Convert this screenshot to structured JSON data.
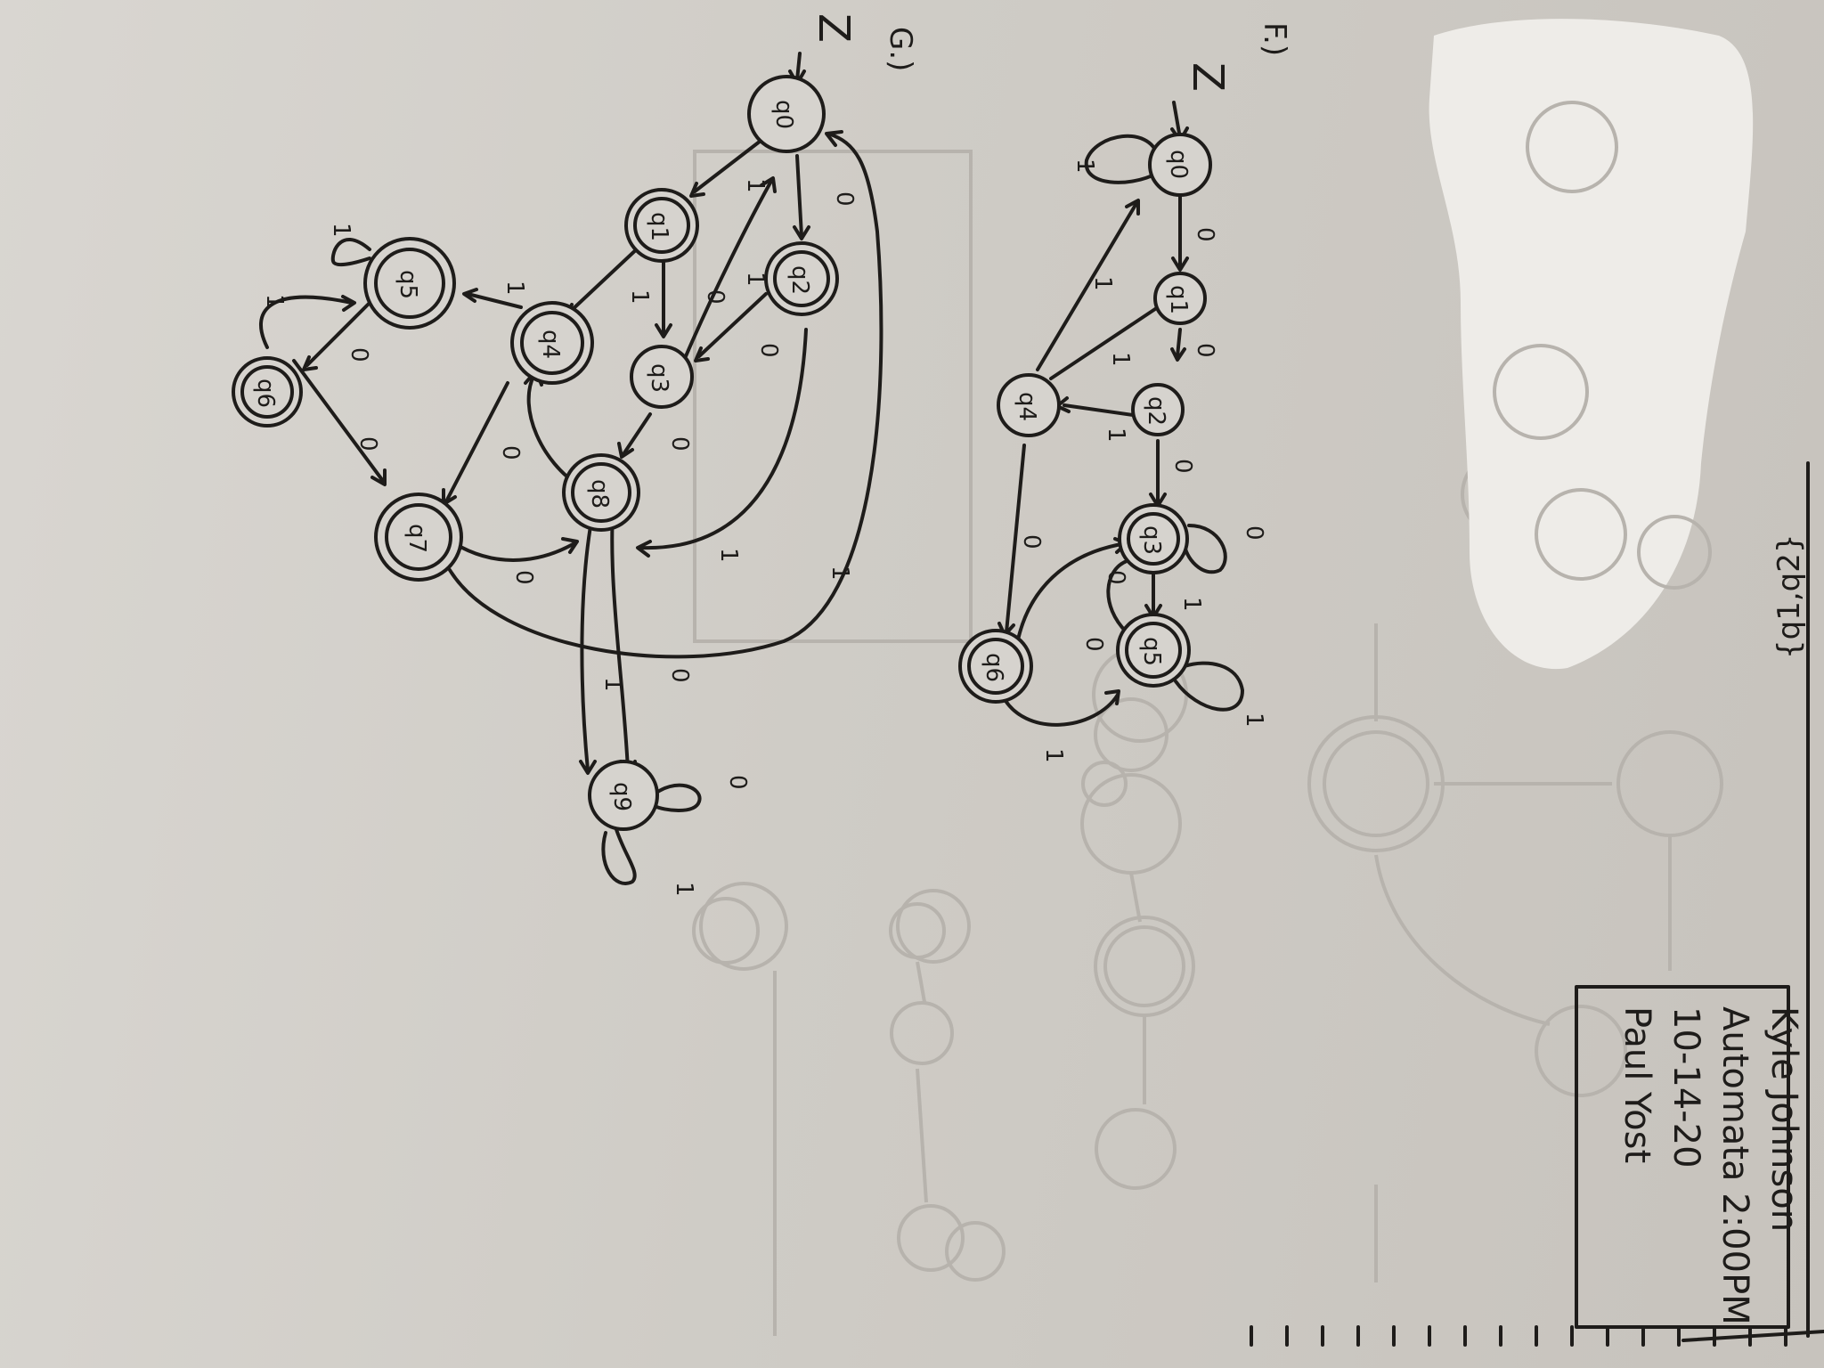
{
  "header": {
    "corner_text": "{q1,q2}"
  },
  "info_box": {
    "lines": [
      "Kyle Johnson",
      "Automata 2:00PM",
      "10-14-20",
      "Paul Yost"
    ]
  },
  "part_g": {
    "label": "G.)",
    "start_marker": "Z",
    "states": [
      {
        "id": "q0",
        "label": "q0",
        "accepting": false
      },
      {
        "id": "q1",
        "label": "q1",
        "accepting": true
      },
      {
        "id": "q2",
        "label": "q2",
        "accepting": true
      },
      {
        "id": "q3",
        "label": "q3",
        "accepting": false
      },
      {
        "id": "q4",
        "label": "q4",
        "accepting": true
      },
      {
        "id": "q5",
        "label": "q5",
        "accepting": true
      },
      {
        "id": "q6",
        "label": "q6",
        "accepting": true
      },
      {
        "id": "q7",
        "label": "q7",
        "accepting": true
      },
      {
        "id": "q8",
        "label": "q8",
        "accepting": true
      },
      {
        "id": "q9",
        "label": "q9",
        "accepting": false
      }
    ],
    "transitions": [
      {
        "from": "q0",
        "to": "q1",
        "symbol": "1"
      },
      {
        "from": "q0",
        "to": "q2",
        "symbol": "0"
      },
      {
        "from": "q1",
        "to": "q3",
        "symbol": "0"
      },
      {
        "from": "q1",
        "to": "q4",
        "symbol": "1"
      },
      {
        "from": "q2",
        "to": "q3",
        "symbol": "0"
      },
      {
        "from": "q2",
        "to": "q0",
        "symbol": "1"
      },
      {
        "from": "q3",
        "to": "q8",
        "symbol": "0"
      },
      {
        "from": "q4",
        "to": "q5",
        "symbol": "1"
      },
      {
        "from": "q4",
        "to": "q7",
        "symbol": "0"
      },
      {
        "from": "q5",
        "to": "q5",
        "symbol": "1"
      },
      {
        "from": "q5",
        "to": "q6",
        "symbol": "0"
      },
      {
        "from": "q6",
        "to": "q5",
        "symbol": "1"
      },
      {
        "from": "q6",
        "to": "q7",
        "symbol": "0"
      },
      {
        "from": "q7",
        "to": "q8",
        "symbol": "0"
      },
      {
        "from": "q7",
        "to": "q0",
        "symbol": "1"
      },
      {
        "from": "q8",
        "to": "q9",
        "symbol": "0"
      },
      {
        "from": "q8",
        "to": "q9",
        "symbol": "1"
      },
      {
        "from": "q8",
        "to": "q4",
        "symbol": "1"
      },
      {
        "from": "q9",
        "to": "q9",
        "symbol": "0"
      },
      {
        "from": "q9",
        "to": "q9",
        "symbol": "1"
      }
    ]
  },
  "part_f": {
    "label": "F.)",
    "start_marker": "Z",
    "states": [
      {
        "id": "q0",
        "label": "q0",
        "accepting": false
      },
      {
        "id": "q1",
        "label": "q1",
        "accepting": false
      },
      {
        "id": "q2",
        "label": "q2",
        "accepting": false
      },
      {
        "id": "q3",
        "label": "q3",
        "accepting": true
      },
      {
        "id": "q4",
        "label": "q4",
        "accepting": false
      },
      {
        "id": "q5",
        "label": "q5",
        "accepting": true
      },
      {
        "id": "q6",
        "label": "q6",
        "accepting": true
      }
    ],
    "transitions": [
      {
        "from": "q0",
        "to": "q0",
        "symbol": "1"
      },
      {
        "from": "q0",
        "to": "q1",
        "symbol": "0"
      },
      {
        "from": "q1",
        "to": "q2",
        "symbol": "0"
      },
      {
        "from": "q1",
        "to": "q4",
        "symbol": "1"
      },
      {
        "from": "q2",
        "to": "q3",
        "symbol": "0"
      },
      {
        "from": "q2",
        "to": "q4",
        "symbol": "1"
      },
      {
        "from": "q3",
        "to": "q3",
        "symbol": "0"
      },
      {
        "from": "q3",
        "to": "q5",
        "symbol": "1"
      },
      {
        "from": "q3",
        "to": "q6",
        "symbol": "0"
      },
      {
        "from": "q4",
        "to": "q0",
        "symbol": "1"
      },
      {
        "from": "q4",
        "to": "q6",
        "symbol": "0"
      },
      {
        "from": "q5",
        "to": "q5",
        "symbol": "1"
      },
      {
        "from": "q5",
        "to": "q3",
        "symbol": "0"
      },
      {
        "from": "q6",
        "to": "q5",
        "symbol": "1"
      }
    ]
  },
  "colors": {
    "ink": "#1e1c1a",
    "paper": "#d6d3ce",
    "ghost": "#b7b3ad",
    "whiteout": "#eeece8"
  }
}
